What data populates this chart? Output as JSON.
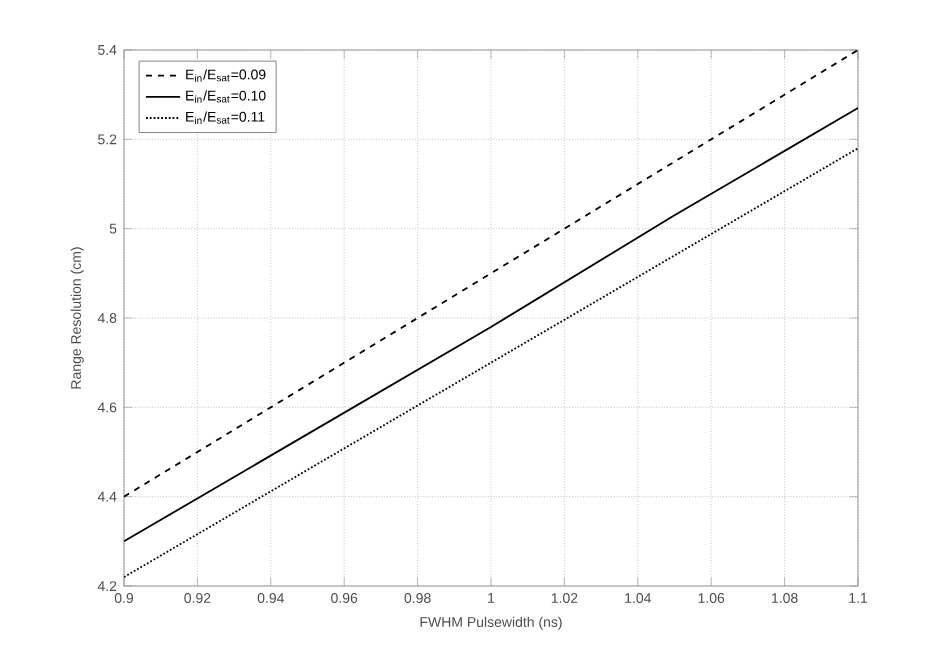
{
  "chart_data": {
    "type": "line",
    "xlabel": "FWHM Pulsewidth (ns)",
    "ylabel": "Range Resolution (cm)",
    "x": [
      0.9,
      0.95,
      1.0,
      1.05,
      1.1
    ],
    "series": [
      {
        "name": "E$_{in}$/E$_{sat}$=0.09",
        "color": "#000000",
        "line_style": "dashed",
        "values": [
          4.4,
          4.65,
          4.9,
          5.15,
          5.4
        ]
      },
      {
        "name": "E$_{in}$/E$_{sat}$=0.10",
        "color": "#000000",
        "line_style": "solid",
        "values": [
          4.3,
          4.54,
          4.78,
          5.03,
          5.27
        ]
      },
      {
        "name": "E$_{in}$/E$_{sat}$=0.11",
        "color": "#000000",
        "line_style": "dotted",
        "values": [
          4.22,
          4.46,
          4.7,
          4.94,
          5.18
        ]
      }
    ],
    "xlim": [
      0.9,
      1.1
    ],
    "xticks": [
      0.9,
      0.92,
      0.94,
      0.96,
      0.98,
      1,
      1.02,
      1.04,
      1.06,
      1.08,
      1.1
    ],
    "ylim": [
      4.2,
      5.4
    ],
    "yticks": [
      4.2,
      4.4,
      4.6,
      4.8,
      5,
      5.2,
      5.4
    ],
    "grid": true,
    "legend": "top left"
  }
}
